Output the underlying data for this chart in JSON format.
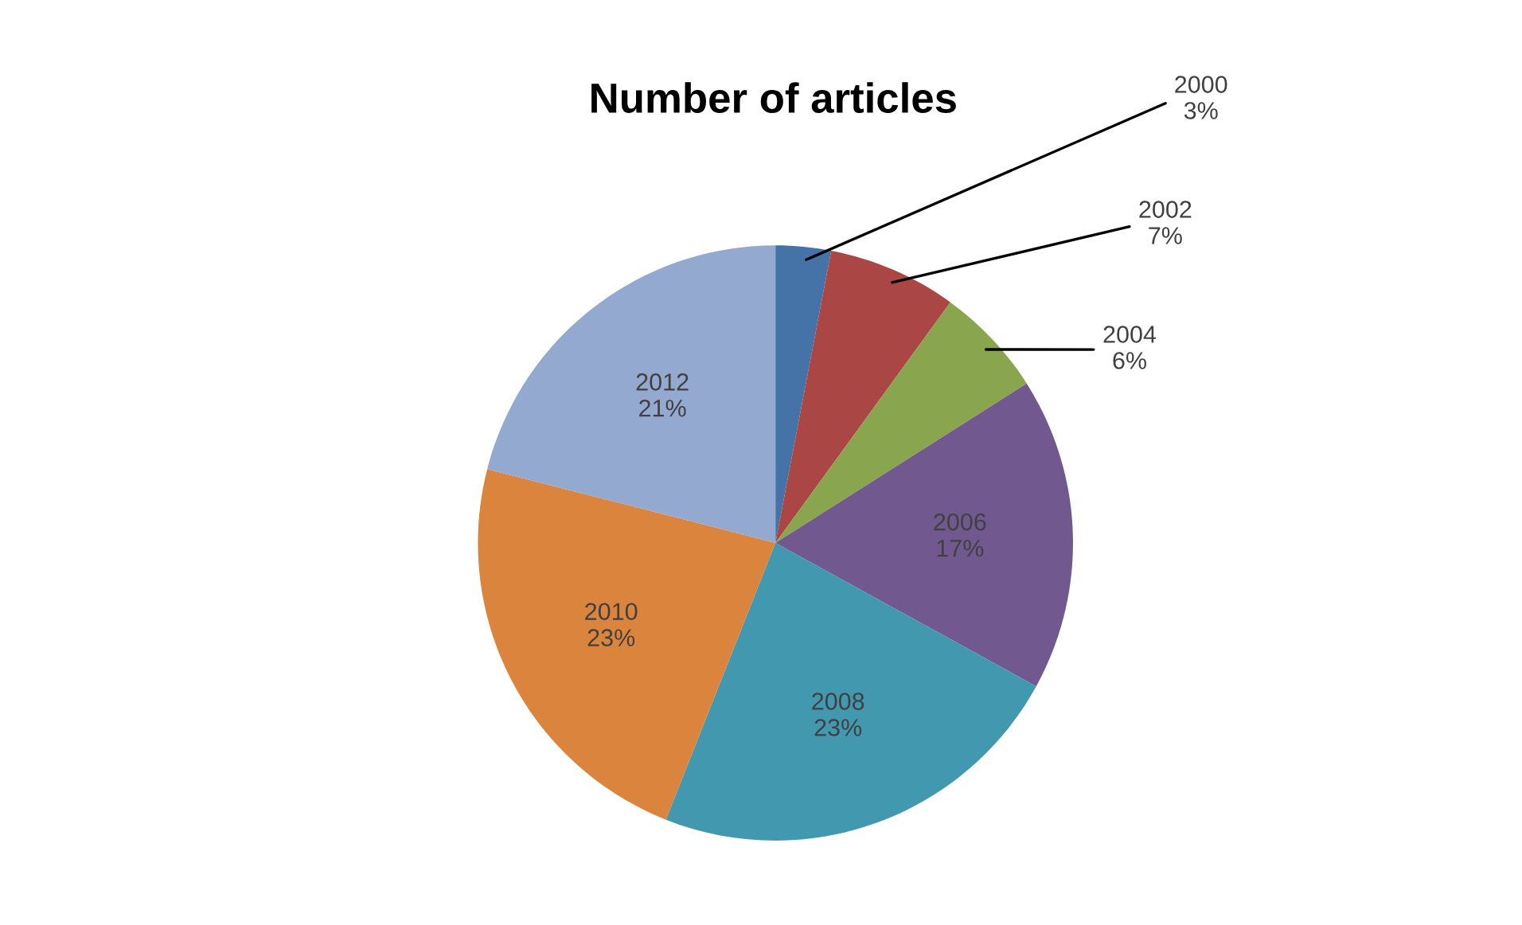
{
  "chart_data": {
    "type": "pie",
    "title": "Number of articles",
    "categories": [
      "2000",
      "2002",
      "2004",
      "2006",
      "2008",
      "2010",
      "2012"
    ],
    "values": [
      3,
      7,
      6,
      17,
      23,
      23,
      21
    ],
    "value_labels": [
      "3%",
      "7%",
      "6%",
      "17%",
      "23%",
      "23%",
      "21%"
    ],
    "colors": [
      "#4572a7",
      "#aa4643",
      "#89a54e",
      "#71588f",
      "#4198af",
      "#db843d",
      "#93a9cf"
    ],
    "legend": false
  }
}
